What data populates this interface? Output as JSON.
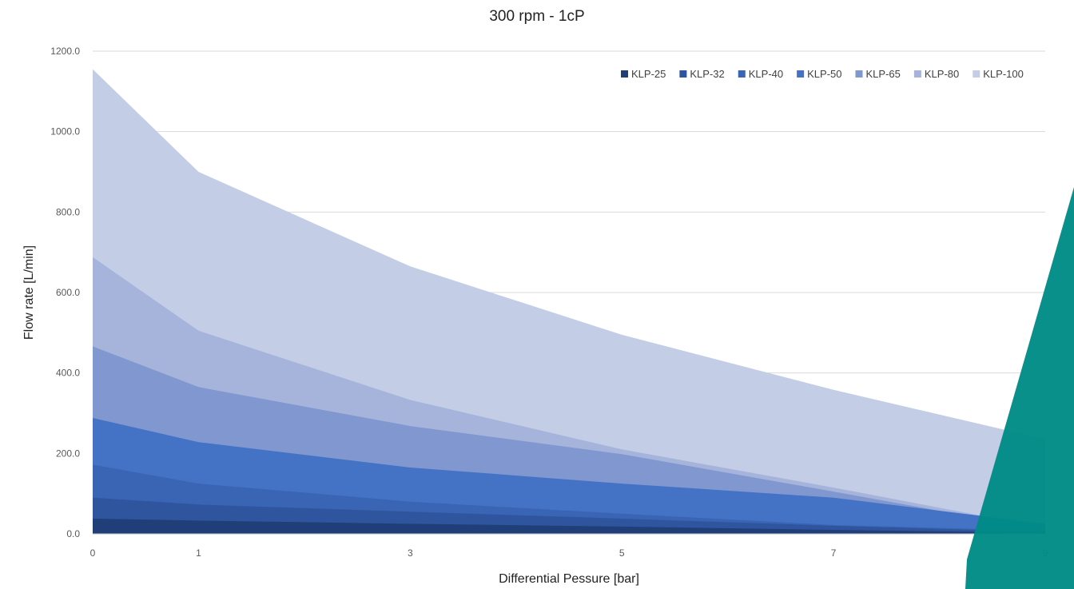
{
  "chart_data": {
    "type": "area",
    "title": "300 rpm - 1cP",
    "xlabel": "Differential Pessure [bar]",
    "ylabel": "Flow rate [L/min]",
    "x": [
      0,
      1,
      3,
      5,
      7,
      9
    ],
    "x_tick_labels": [
      "0",
      "1",
      "3",
      "5",
      "7",
      "9"
    ],
    "ylim": [
      0,
      1200
    ],
    "y_tick_labels": [
      "0.0",
      "200.0",
      "400.0",
      "600.0",
      "800.0",
      "1000.0",
      "1200.0"
    ],
    "grid": true,
    "legend_position": "top-right",
    "series": [
      {
        "name": "KLP-100",
        "color": "#c3cde6",
        "values": [
          1155,
          900,
          665,
          495,
          358,
          235
        ]
      },
      {
        "name": "KLP-80",
        "color": "#a6b4dc",
        "values": [
          688,
          505,
          333,
          210,
          115,
          15
        ]
      },
      {
        "name": "KLP-65",
        "color": "#8097d0",
        "values": [
          466,
          365,
          268,
          198,
          105,
          10
        ]
      },
      {
        "name": "KLP-50",
        "color": "#4472c4",
        "values": [
          288,
          228,
          165,
          125,
          90,
          25
        ]
      },
      {
        "name": "KLP-40",
        "color": "#3a65b5",
        "values": [
          172,
          125,
          80,
          50,
          22,
          8
        ]
      },
      {
        "name": "KLP-32",
        "color": "#2f559e",
        "values": [
          90,
          73,
          55,
          38,
          20,
          5
        ]
      },
      {
        "name": "KLP-25",
        "color": "#203f78",
        "values": [
          38,
          33,
          25,
          18,
          10,
          3
        ]
      }
    ],
    "legend_order": [
      "KLP-25",
      "KLP-32",
      "KLP-40",
      "KLP-50",
      "KLP-65",
      "KLP-80",
      "KLP-100"
    ]
  },
  "decor": {
    "accent_color": "#008b86"
  }
}
